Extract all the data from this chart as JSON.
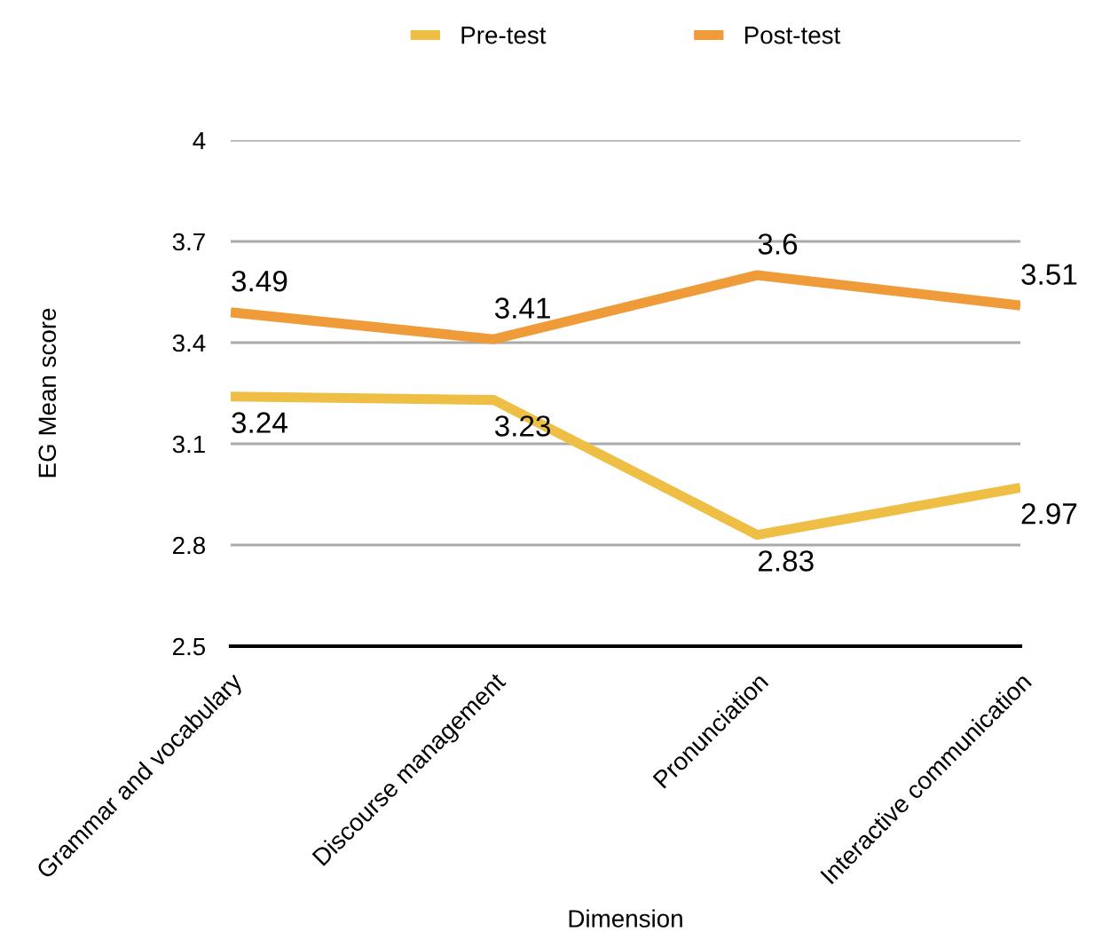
{
  "chart_data": {
    "type": "line",
    "xlabel": "Dimension",
    "ylabel": "EG Mean score",
    "categories": [
      "Grammar and vocabulary",
      "Discourse management",
      "Pronunciation",
      "Interactive communication"
    ],
    "series": [
      {
        "name": "Pre-test",
        "color": "#efbf45",
        "values": [
          3.24,
          3.23,
          2.83,
          2.97
        ]
      },
      {
        "name": "Post-test",
        "color": "#ef9b3a",
        "values": [
          3.49,
          3.41,
          3.6,
          3.51
        ]
      }
    ],
    "ylim": [
      2.5,
      4
    ],
    "yticks": [
      2.5,
      2.8,
      3.1,
      3.4,
      3.7,
      4
    ],
    "grid": "y",
    "legend": "top",
    "data_labels": true,
    "marker": "none",
    "line_style": "solid"
  }
}
